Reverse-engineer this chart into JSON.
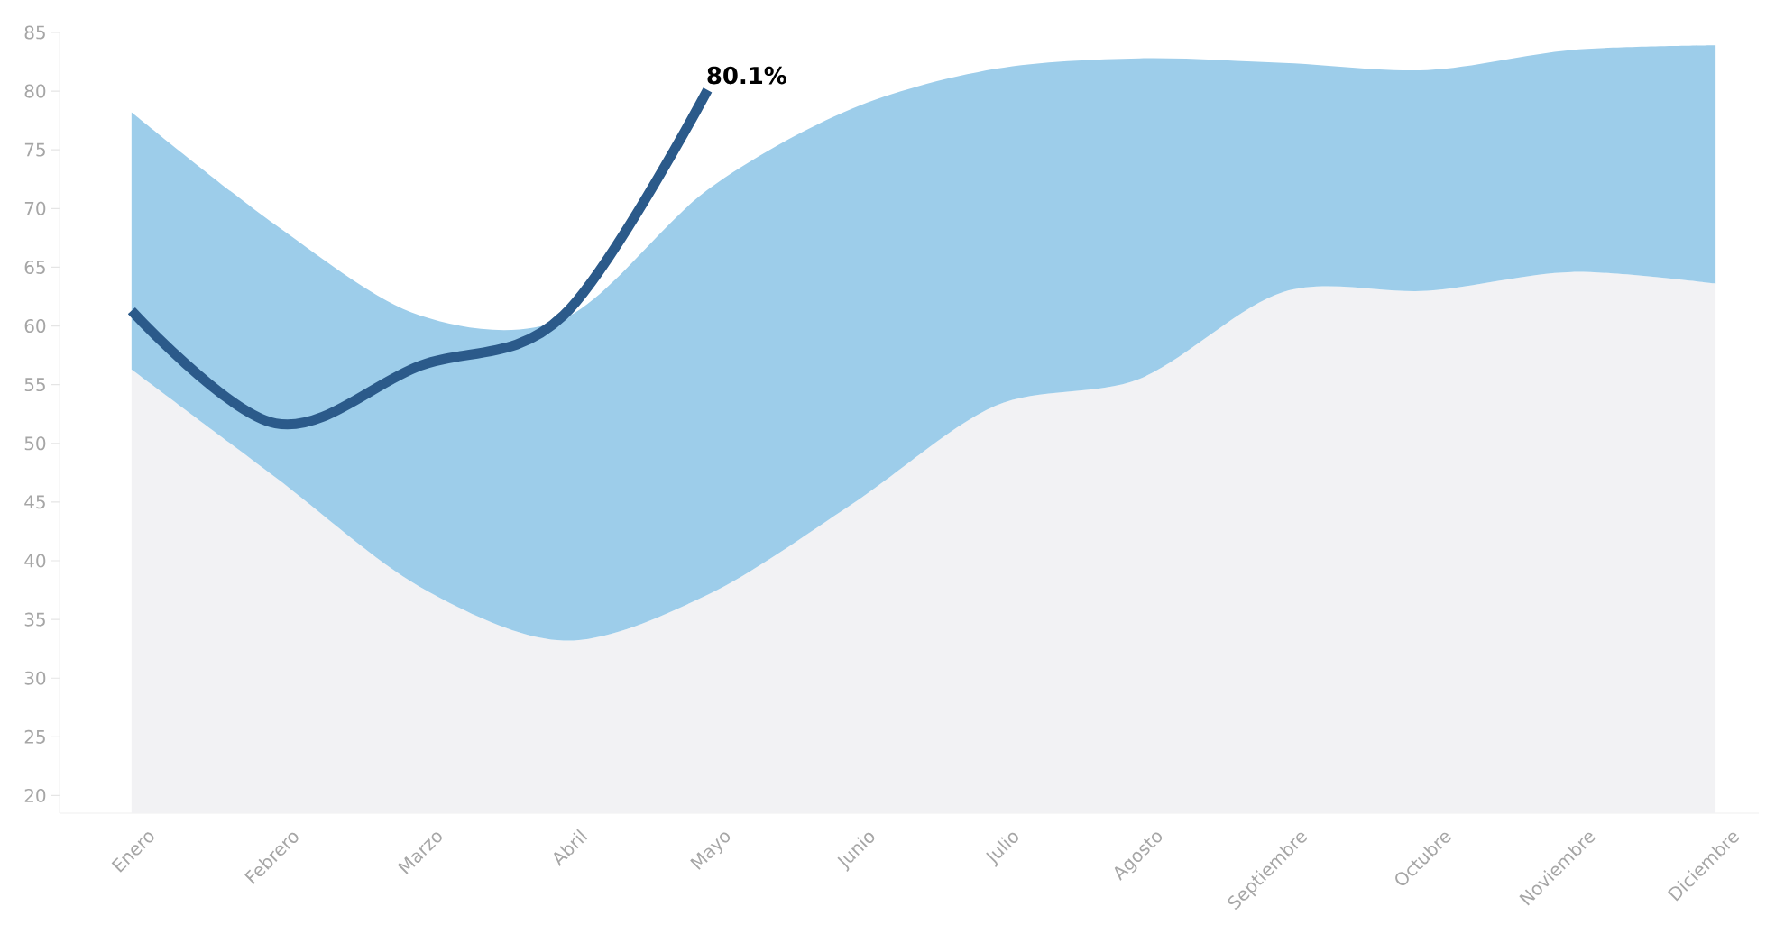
{
  "chart_data": {
    "type": "area",
    "categories": [
      "Enero",
      "Febrero",
      "Marzo",
      "Abril",
      "Mayo",
      "Junio",
      "Julio",
      "Agosto",
      "Septiembre",
      "Octubre",
      "Noviembre",
      "Diciembre"
    ],
    "stacked": true,
    "series": [
      {
        "type": "area",
        "color": "#f2f2f4",
        "values": [
          56.3,
          47.1,
          37.8,
          33.2,
          37.1,
          44.8,
          53.2,
          55.5,
          62.9,
          63.0,
          64.6,
          63.6
        ]
      },
      {
        "type": "area",
        "color": "#9dcdea",
        "values": [
          21.9,
          21.5,
          23.1,
          27.4,
          34.5,
          33.7,
          28.7,
          27.3,
          19.5,
          18.8,
          18.9,
          20.3
        ]
      },
      {
        "type": "line",
        "color": "#2b5a8a",
        "values": [
          61.3,
          51.7,
          56.6,
          60.9,
          80.1,
          null,
          null,
          null,
          null,
          null,
          null,
          null
        ],
        "value_labels": [
          null,
          null,
          null,
          null,
          "80.1%",
          null,
          null,
          null,
          null,
          null,
          null,
          null
        ]
      }
    ],
    "ylim": [
      18.5,
      85
    ],
    "yticks": [
      20,
      25,
      30,
      35,
      40,
      45,
      50,
      55,
      60,
      65,
      70,
      75,
      80,
      85
    ]
  }
}
